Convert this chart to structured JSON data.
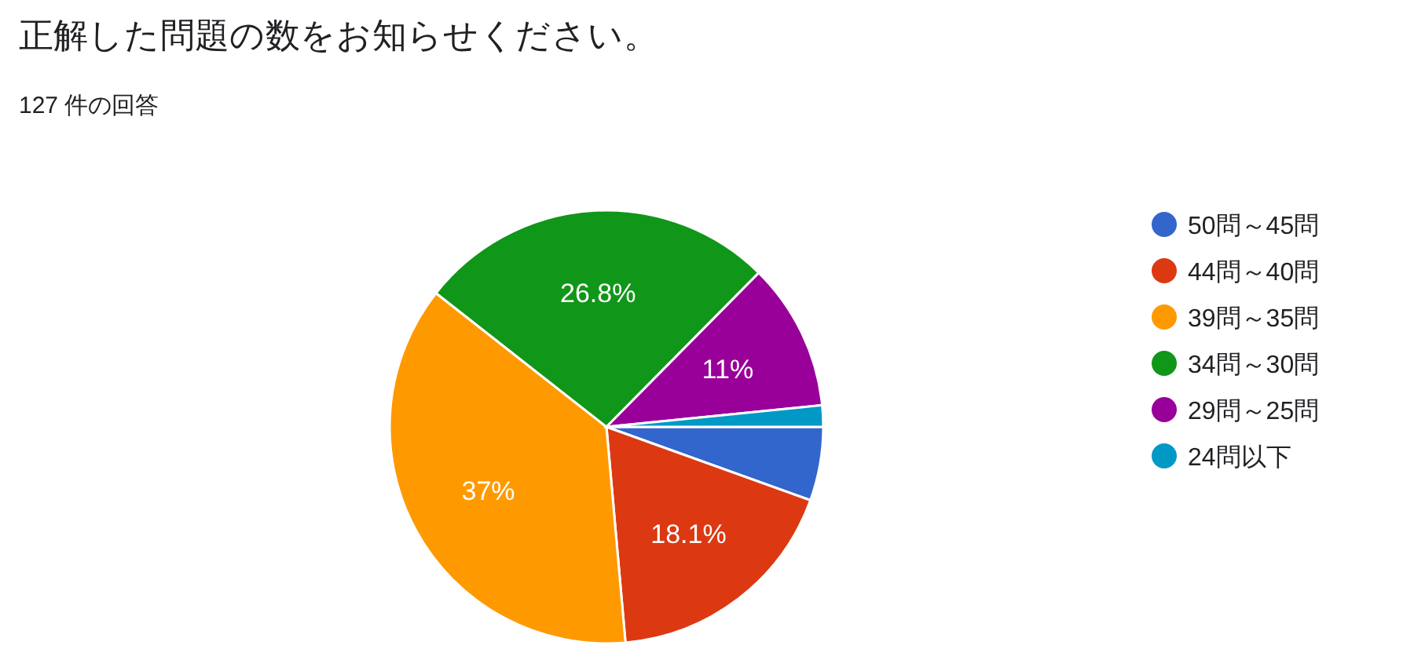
{
  "chart_data": {
    "type": "pie",
    "title": "正解した問題の数をお知らせください。",
    "subtitle": "127 件の回答",
    "categories": [
      "50問～45問",
      "44問～40問",
      "39問～35問",
      "34問～30問",
      "29問～25問",
      "24問以下"
    ],
    "values": [
      5.5,
      18.1,
      37,
      26.8,
      11,
      1.6
    ],
    "colors": [
      "#3366cc",
      "#dc3912",
      "#ff9900",
      "#109618",
      "#990099",
      "#0099c6"
    ],
    "value_labels": [
      null,
      "18.1%",
      "37%",
      "26.8%",
      "11%",
      null
    ],
    "legend": "right"
  }
}
